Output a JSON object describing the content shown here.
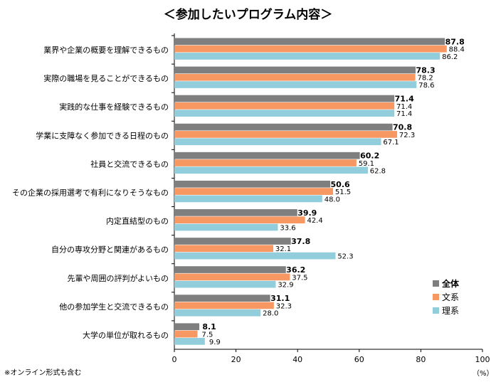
{
  "chart_data": {
    "type": "bar",
    "orientation": "horizontal",
    "title": "＜参加したいプログラム内容＞",
    "unit_label": "（%）",
    "footnote": "※オンライン形式も含む",
    "xlim": [
      0,
      100
    ],
    "xticks": [
      0,
      20,
      40,
      60,
      80,
      100
    ],
    "grid": false,
    "legend_position": "bottom-right",
    "categories": [
      "業界や企業の概要を理解できるもの",
      "実際の職場を見ることができるもの",
      "実践的な仕事を経験できるもの",
      "学業に支障なく参加できる日程のもの",
      "社員と交流できるもの",
      "その企業の採用選考で有利になりそうなもの",
      "内定直結型のもの",
      "自分の専攻分野と関連があるもの",
      "先輩や周囲の評判がよいもの",
      "他の参加学生と交流できるもの",
      "大学の単位が取れるもの"
    ],
    "series": [
      {
        "name": "全体",
        "color": "#7f7f7f",
        "values": [
          87.8,
          78.3,
          71.4,
          70.8,
          60.2,
          50.6,
          39.9,
          37.8,
          36.2,
          31.1,
          8.1
        ]
      },
      {
        "name": "文系",
        "color": "#f79862",
        "values": [
          88.4,
          78.2,
          71.4,
          72.3,
          59.1,
          51.5,
          42.4,
          32.1,
          37.5,
          32.3,
          7.5
        ]
      },
      {
        "name": "理系",
        "color": "#92cddc",
        "values": [
          86.2,
          78.6,
          71.4,
          67.1,
          62.8,
          48.0,
          33.6,
          52.3,
          32.9,
          28.0,
          9.9
        ]
      }
    ]
  }
}
